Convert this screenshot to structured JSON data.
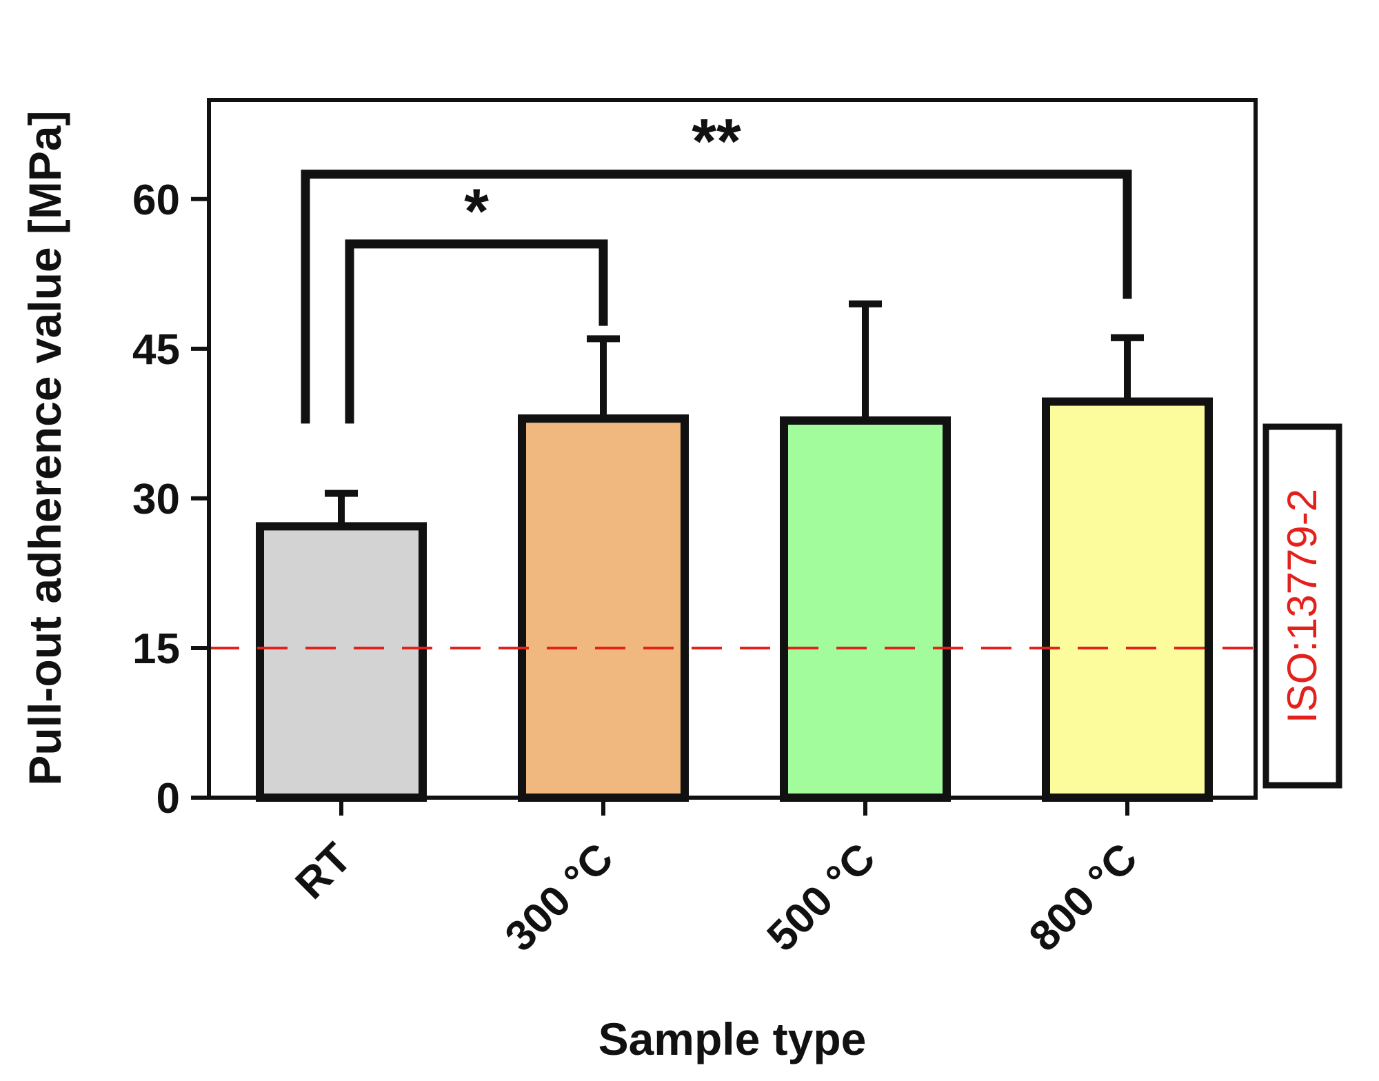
{
  "chart_data": {
    "type": "bar",
    "title": "",
    "xlabel": "Sample type",
    "ylabel": "Pull-out adherence value [MPa]",
    "ylim": [
      0,
      70
    ],
    "yticks": [
      0,
      15,
      30,
      45,
      60
    ],
    "ytick_labels": [
      "0",
      "15",
      "30",
      "45",
      "60"
    ],
    "grid": false,
    "legend": "none",
    "categories": [
      "RT",
      "300 °C",
      "500 °C",
      "800 °C"
    ],
    "values": [
      27.2,
      38.0,
      37.8,
      39.7
    ],
    "error_plus": [
      3.3,
      8.0,
      11.7,
      6.4
    ],
    "bar_colors": [
      "#d3d3d3",
      "#f0b77e",
      "#a2fc9c",
      "#fdfc9c"
    ],
    "reference_line": {
      "value": 15,
      "label": "ISO:13779-2",
      "color": "#e3201b"
    },
    "significance": [
      {
        "from": "RT",
        "to": "300 °C",
        "bracket_value": 55.5,
        "label": "*"
      },
      {
        "from": "RT",
        "to": "800 °C",
        "bracket_value": 62.5,
        "label": "**"
      }
    ]
  }
}
